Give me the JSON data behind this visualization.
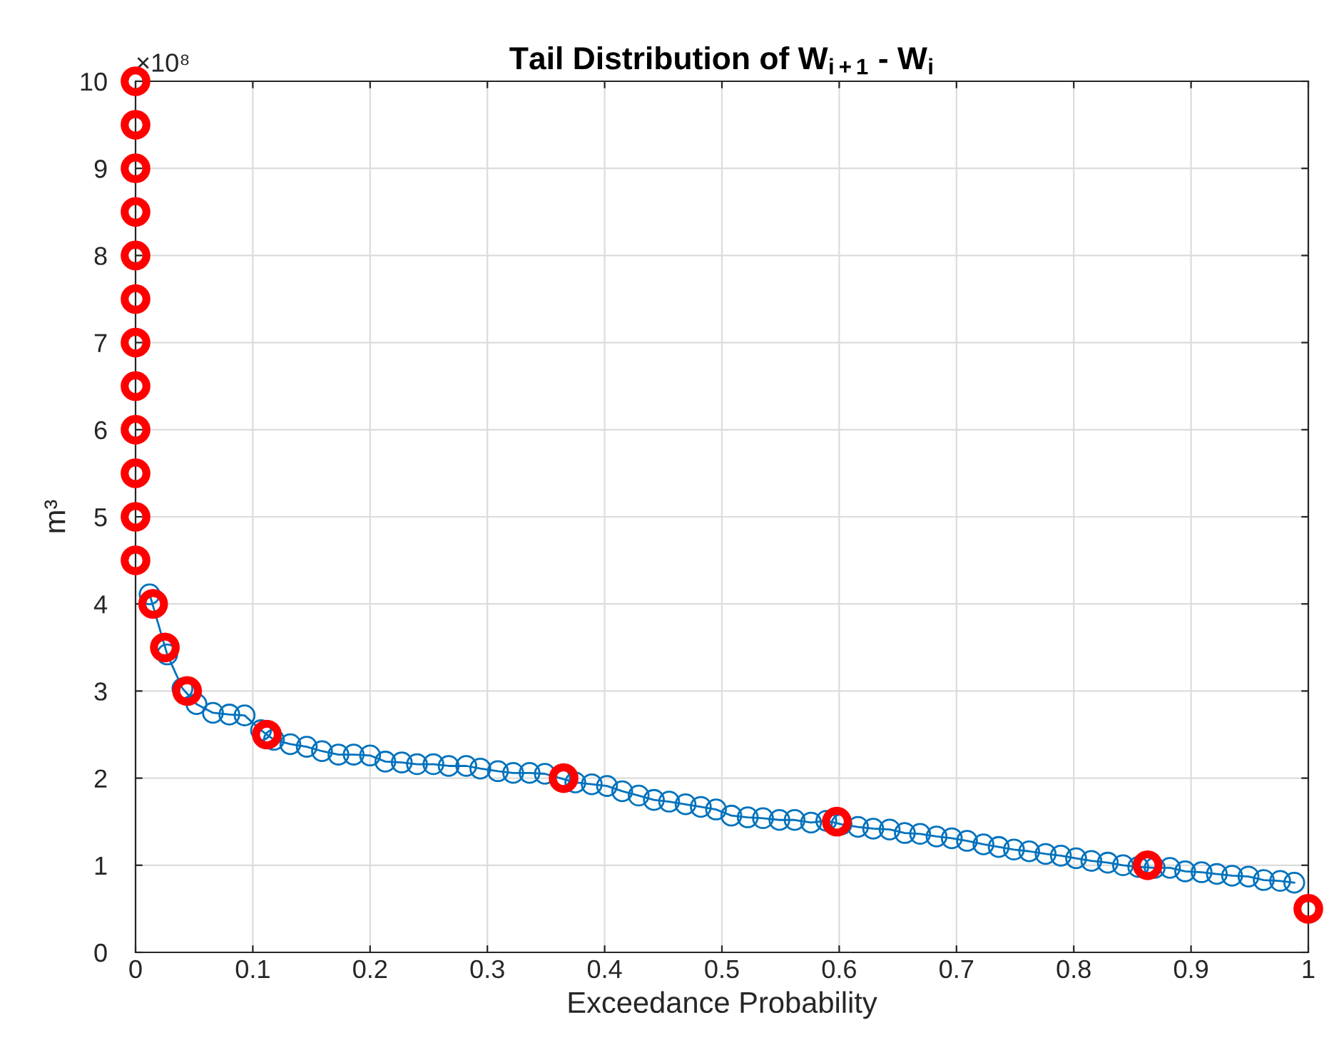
{
  "chart_data": {
    "type": "line",
    "title": "Tail Distribution of W$_{i+1}$ - W$_{i}$",
    "xlabel": "Exceedance Probability",
    "ylabel": "m³",
    "annotations": [
      "×10⁸"
    ],
    "xlim": [
      0,
      1
    ],
    "xticks": [
      0,
      0.1,
      0.2,
      0.3,
      0.4,
      0.5,
      0.6,
      0.7,
      0.8,
      0.9,
      1
    ],
    "ylim": [
      0,
      10
    ],
    "yticks": [
      0,
      1,
      2,
      3,
      4,
      5,
      6,
      7,
      8,
      9,
      10
    ],
    "grid": true,
    "series": [
      {
        "color": "#0072bd",
        "marker": "circle",
        "line_style": "solid",
        "x": [
          0.012,
          0.027,
          0.04,
          0.052,
          0.066,
          0.08,
          0.093,
          0.107,
          0.118,
          0.132,
          0.146,
          0.159,
          0.173,
          0.186,
          0.2,
          0.213,
          0.227,
          0.24,
          0.254,
          0.267,
          0.282,
          0.294,
          0.309,
          0.322,
          0.336,
          0.349,
          0.362,
          0.375,
          0.389,
          0.402,
          0.415,
          0.429,
          0.442,
          0.455,
          0.469,
          0.482,
          0.495,
          0.508,
          0.522,
          0.535,
          0.549,
          0.562,
          0.576,
          0.589,
          0.602,
          0.616,
          0.629,
          0.643,
          0.656,
          0.669,
          0.683,
          0.696,
          0.709,
          0.723,
          0.736,
          0.749,
          0.762,
          0.776,
          0.789,
          0.802,
          0.815,
          0.829,
          0.842,
          0.855,
          0.869,
          0.882,
          0.895,
          0.909,
          0.922,
          0.935,
          0.949,
          0.962,
          0.976,
          0.988
        ],
        "values": [
          4.11,
          3.42,
          3.03,
          2.85,
          2.75,
          2.73,
          2.72,
          2.55,
          2.44,
          2.39,
          2.36,
          2.31,
          2.27,
          2.27,
          2.26,
          2.19,
          2.18,
          2.16,
          2.16,
          2.14,
          2.14,
          2.11,
          2.08,
          2.06,
          2.06,
          2.05,
          2.0,
          1.95,
          1.93,
          1.91,
          1.85,
          1.8,
          1.75,
          1.73,
          1.7,
          1.67,
          1.64,
          1.57,
          1.55,
          1.54,
          1.52,
          1.52,
          1.49,
          1.51,
          1.47,
          1.44,
          1.42,
          1.41,
          1.37,
          1.36,
          1.33,
          1.31,
          1.28,
          1.24,
          1.21,
          1.18,
          1.16,
          1.13,
          1.11,
          1.08,
          1.05,
          1.03,
          1.0,
          0.98,
          0.97,
          0.97,
          0.93,
          0.92,
          0.9,
          0.88,
          0.87,
          0.83,
          0.82,
          0.8
        ]
      },
      {
        "type": "scatter",
        "color": "#ff0000",
        "marker": "circle",
        "x": [
          0,
          0,
          0,
          0,
          0,
          0,
          0,
          0,
          0,
          0,
          0,
          0,
          0.015,
          0.025,
          0.044,
          0.112,
          0.365,
          0.598,
          0.863,
          1.0
        ],
        "values": [
          10,
          9.5,
          9,
          8.5,
          8,
          7.5,
          7,
          6.5,
          6,
          5.5,
          5,
          4.5,
          4.0,
          3.5,
          3.0,
          2.5,
          2.0,
          1.5,
          1.0,
          0.5
        ]
      }
    ]
  }
}
